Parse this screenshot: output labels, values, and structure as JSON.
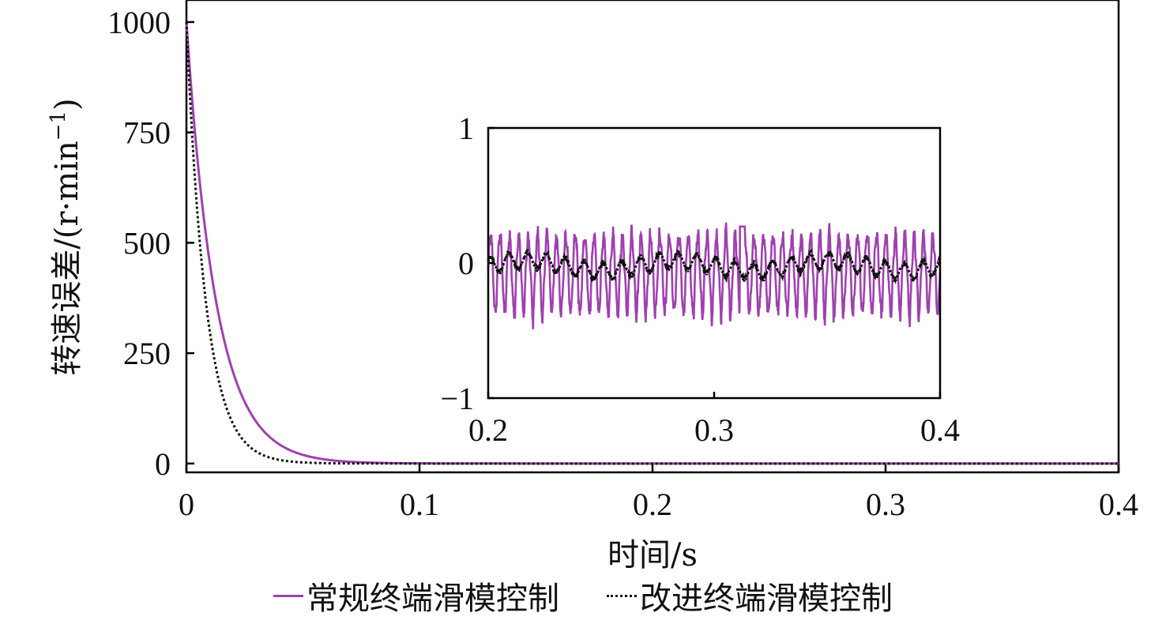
{
  "chart_data": [
    {
      "type": "line",
      "xlabel": "时间/s",
      "ylabel": "转速误差/(r·min",
      "ylabel_sup": "−1",
      "ylabel_close": ")",
      "xlim": [
        0,
        0.4
      ],
      "ylim": [
        -20,
        1050
      ],
      "xticks": [
        0,
        0.1,
        0.2,
        0.3,
        0.4
      ],
      "xtick_labels": [
        "0",
        "0.1",
        "0.2",
        "0.3",
        "0.4"
      ],
      "yticks": [
        0,
        250,
        500,
        750,
        1000
      ],
      "ytick_labels": [
        "0",
        "250",
        "500",
        "750",
        "1000"
      ],
      "grid": false,
      "legend_position": "bottom",
      "series": [
        {
          "name": "常规终端滑模控制",
          "color": "#a040b0",
          "style": "solid",
          "model": "exponential_decay",
          "y0": 1000,
          "time_constant": 0.0127
        },
        {
          "name": "改进终端滑模控制",
          "color": "#111111",
          "style": "dotted",
          "model": "exponential_decay",
          "y0": 1000,
          "time_constant": 0.0083
        }
      ]
    },
    {
      "type": "line",
      "role": "inset",
      "xlim": [
        0.2,
        0.4
      ],
      "ylim": [
        -1,
        1
      ],
      "xticks": [
        0.2,
        0.3,
        0.4
      ],
      "xtick_labels": [
        "0.2",
        "0.3",
        "0.4"
      ],
      "yticks": [
        -1,
        0,
        1
      ],
      "ytick_labels": [
        "−1",
        "0",
        "1"
      ],
      "series": [
        {
          "name": "常规终端滑模控制",
          "color": "#a040b0",
          "style": "solid",
          "model": "oscillation",
          "mean": -0.05,
          "amplitude": 0.25,
          "cycles": 48,
          "spike_x": 0.3125,
          "spike_y": 0.27
        },
        {
          "name": "改进终端滑模控制",
          "color": "#111111",
          "style": "dotted",
          "model": "oscillation",
          "mean": -0.02,
          "amplitude": 0.06,
          "cycles": 48
        }
      ]
    }
  ]
}
